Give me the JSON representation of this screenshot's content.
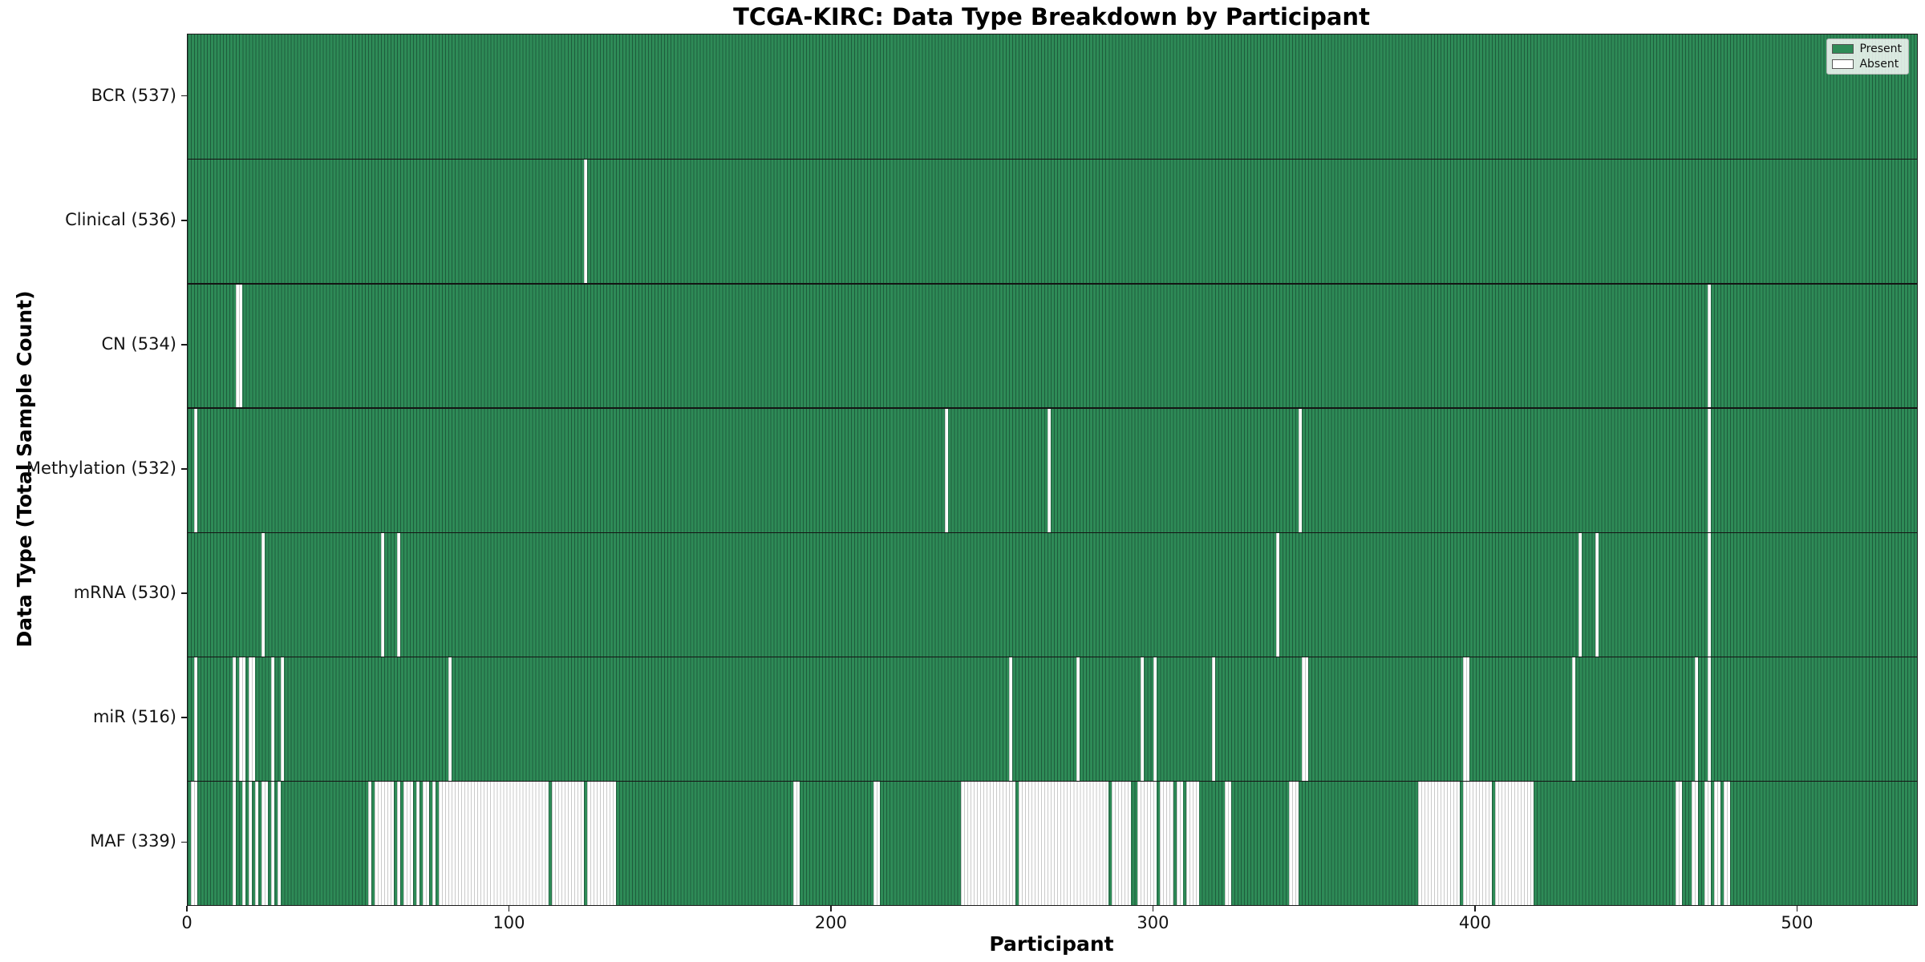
{
  "chart_data": {
    "type": "heatmap",
    "title": "TCGA-KIRC: Data Type Breakdown by Participant",
    "xlabel": "Participant",
    "ylabel": "Data Type (Total Sample Count)",
    "x_ticks": [
      0,
      100,
      200,
      300,
      400,
      500
    ],
    "n_participants": 537,
    "grid": false,
    "legend": {
      "position": "upper right",
      "entries": [
        {
          "label": "Present",
          "color": "#2e8b57"
        },
        {
          "label": "Absent",
          "color": "#ffffff"
        }
      ]
    },
    "colors": {
      "present": "#2e8b57",
      "present_edge": "#1e5c3c",
      "absent": "#ffffff",
      "absent_edge": "#c9c9c9",
      "separator": "#141414"
    },
    "rows": [
      {
        "data_type": "BCR",
        "label": "BCR (537)",
        "present_count": 537,
        "absent_ranges": []
      },
      {
        "data_type": "Clinical",
        "label": "Clinical (536)",
        "present_count": 536,
        "absent_ranges": [
          [
            123,
            123
          ]
        ]
      },
      {
        "data_type": "CN",
        "label": "CN (534)",
        "present_count": 534,
        "absent_ranges": [
          [
            15,
            16
          ],
          [
            472,
            472
          ]
        ]
      },
      {
        "data_type": "Methylation",
        "label": "Methylation (532)",
        "present_count": 532,
        "absent_ranges": [
          [
            2,
            2
          ],
          [
            235,
            235
          ],
          [
            267,
            267
          ],
          [
            345,
            345
          ],
          [
            472,
            472
          ]
        ]
      },
      {
        "data_type": "mRNA",
        "label": "mRNA (530)",
        "present_count": 530,
        "absent_ranges": [
          [
            23,
            23
          ],
          [
            60,
            60
          ],
          [
            65,
            65
          ],
          [
            338,
            338
          ],
          [
            432,
            432
          ],
          [
            437,
            437
          ],
          [
            472,
            472
          ]
        ]
      },
      {
        "data_type": "miR",
        "label": "miR (516)",
        "present_count": 516,
        "absent_ranges": [
          [
            2,
            2
          ],
          [
            14,
            14
          ],
          [
            16,
            17
          ],
          [
            19,
            20
          ],
          [
            26,
            26
          ],
          [
            29,
            29
          ],
          [
            81,
            81
          ],
          [
            255,
            255
          ],
          [
            276,
            276
          ],
          [
            296,
            296
          ],
          [
            300,
            300
          ],
          [
            318,
            318
          ],
          [
            346,
            347
          ],
          [
            396,
            397
          ],
          [
            430,
            430
          ],
          [
            468,
            468
          ],
          [
            472,
            472
          ]
        ]
      },
      {
        "data_type": "MAF",
        "label": "MAF (339)",
        "present_count": 339,
        "absent_ranges": [
          [
            1,
            2
          ],
          [
            14,
            14
          ],
          [
            17,
            17
          ],
          [
            19,
            19
          ],
          [
            21,
            21
          ],
          [
            23,
            24
          ],
          [
            26,
            26
          ],
          [
            28,
            28
          ],
          [
            56,
            56
          ],
          [
            58,
            63
          ],
          [
            65,
            65
          ],
          [
            67,
            69
          ],
          [
            71,
            71
          ],
          [
            73,
            74
          ],
          [
            76,
            76
          ],
          [
            78,
            111
          ],
          [
            113,
            122
          ],
          [
            124,
            132
          ],
          [
            188,
            189
          ],
          [
            213,
            214
          ],
          [
            240,
            256
          ],
          [
            258,
            285
          ],
          [
            287,
            292
          ],
          [
            295,
            300
          ],
          [
            302,
            305
          ],
          [
            307,
            308
          ],
          [
            310,
            313
          ],
          [
            322,
            323
          ],
          [
            342,
            344
          ],
          [
            382,
            394
          ],
          [
            396,
            404
          ],
          [
            406,
            417
          ],
          [
            462,
            463
          ],
          [
            467,
            468
          ],
          [
            471,
            472
          ],
          [
            474,
            475
          ],
          [
            477,
            478
          ]
        ]
      }
    ]
  }
}
